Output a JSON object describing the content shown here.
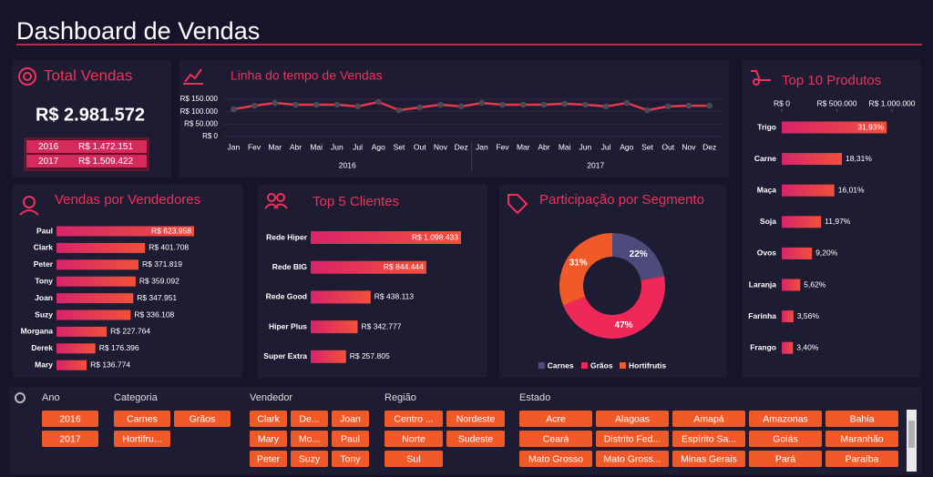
{
  "header": {
    "title": "Dashboard de Vendas"
  },
  "kpi": {
    "title": "Total Vendas",
    "total": "R$ 2.981.572",
    "rows": [
      [
        "2016",
        "R$ 1.472.151"
      ],
      [
        "2017",
        "R$ 1.509.422"
      ]
    ]
  },
  "chart_data": [
    {
      "type": "line",
      "title": "Linha do tempo de Vendas",
      "categories": [
        "Jan",
        "Fev",
        "Mar",
        "Abr",
        "Mai",
        "Jun",
        "Jul",
        "Ago",
        "Set",
        "Out",
        "Nov",
        "Dez",
        "Jan",
        "Fev",
        "Mar",
        "Abr",
        "Mai",
        "Jun",
        "Jul",
        "Ago",
        "Set",
        "Out",
        "Nov",
        "Dez"
      ],
      "groups": [
        "2016",
        "2017"
      ],
      "values": [
        110000,
        124000,
        135000,
        128000,
        128000,
        128000,
        121000,
        139000,
        106000,
        117000,
        128000,
        121000,
        135000,
        128000,
        128000,
        128000,
        132000,
        128000,
        121000,
        135000,
        106000,
        121000,
        124000,
        124000
      ],
      "color": "#e8384f",
      "marker_color": "#4a4a55",
      "ylim": [
        0,
        150000
      ],
      "yticks": [
        {
          "value": 0,
          "label": "R$ 0"
        },
        {
          "value": 50000,
          "label": "R$ 50.000"
        },
        {
          "value": 100000,
          "label": "R$ 100.000"
        },
        {
          "value": 150000,
          "label": "R$ 150.000"
        }
      ],
      "grid": true
    },
    {
      "type": "hbar",
      "title": "Vendas por Vendedores",
      "categories": [
        "Paul",
        "Clark",
        "Peter",
        "Tony",
        "Joan",
        "Suzy",
        "Morgana",
        "Derek",
        "Mary"
      ],
      "values": [
        623958,
        401708,
        371819,
        359092,
        347951,
        336108,
        227764,
        176396,
        136774
      ],
      "value_labels": [
        "R$ 623.958",
        "R$ 401.708",
        "R$ 371.819",
        "R$ 359.092",
        "R$ 347.951",
        "R$ 336.108",
        "R$ 227.764",
        "R$ 176.396",
        "R$ 136.774"
      ],
      "gradient": [
        "#d8246a",
        "#f2503a"
      ]
    },
    {
      "type": "hbar",
      "title": "Top 5 Clientes",
      "categories": [
        "Rede Hiper",
        "Rede BIG",
        "Rede Good",
        "Hiper Plus",
        "Super Extra"
      ],
      "values": [
        1098433,
        844444,
        438113,
        342777,
        257805
      ],
      "value_labels": [
        "R$ 1.098.433",
        "R$ 844.444",
        "R$ 438.113",
        "R$ 342.777",
        "R$ 257.805"
      ],
      "gradient": [
        "#d8246a",
        "#f2503a"
      ]
    },
    {
      "type": "donut",
      "title": "Participação por Segmento",
      "categories": [
        "Carnes",
        "Grãos",
        "Hortifrutis"
      ],
      "values": [
        22,
        47,
        31
      ],
      "value_labels": [
        "22%",
        "47%",
        "31%"
      ],
      "colors": [
        "#4d4a7c",
        "#f0285a",
        "#f05a28"
      ],
      "legend": "bottom"
    },
    {
      "type": "hbar",
      "title": "Top 10 Produtos",
      "categories": [
        "Trigo",
        "Carne",
        "Maça",
        "Soja",
        "Ovos",
        "Laranja",
        "Farinha",
        "Frango"
      ],
      "values": [
        952016,
        545926,
        477350,
        356894,
        274305,
        167564,
        106144,
        101373
      ],
      "value_labels": [
        "31,93%",
        "18,31%",
        "16,01%",
        "11,97%",
        "9,20%",
        "5,62%",
        "3,56%",
        "3,40%"
      ],
      "xlim": [
        0,
        1000000
      ],
      "xticks": [
        {
          "value": 0,
          "label": "R$ 0"
        },
        {
          "value": 500000,
          "label": "R$ 500.000"
        },
        {
          "value": 1000000,
          "label": "R$ 1.000.000"
        }
      ],
      "gradient": [
        "#d8246a",
        "#f2503a"
      ]
    }
  ],
  "slicers": [
    {
      "title": "Ano",
      "items": [
        "2016",
        "2017"
      ]
    },
    {
      "title": "Categoria",
      "items": [
        "Carnes",
        "Grãos",
        "Hortifru..."
      ]
    },
    {
      "title": "Vendedor",
      "items": [
        "Clark",
        "De...",
        "Joan",
        "Mary",
        "Mo...",
        "Paul",
        "Peter",
        "Suzy",
        "Tony"
      ]
    },
    {
      "title": "Região",
      "items": [
        "Centro ...",
        "Nordeste",
        "Norte",
        "Sudeste",
        "Sul"
      ]
    },
    {
      "title": "Estado",
      "items": [
        "Acre",
        "Alagoas",
        "Amapá",
        "Amazonas",
        "Bahia",
        "Ceará",
        "Distrito Fed...",
        "Espírito Sa...",
        "Goiás",
        "Maranhão",
        "Mato Grosso",
        "Mato Gross...",
        "Minas Gerais",
        "Pará",
        "Paraíba"
      ]
    }
  ]
}
